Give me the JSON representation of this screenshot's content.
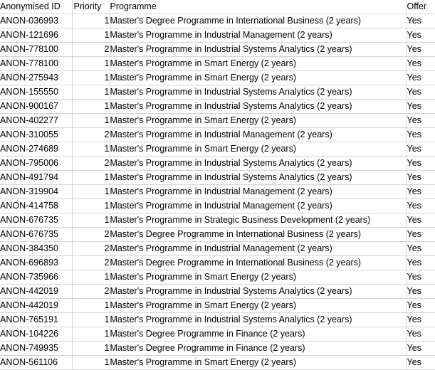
{
  "headers": {
    "id": "Anonymised ID",
    "priority": "Priority",
    "programme": "Programme",
    "offer": "Offer"
  },
  "rows": [
    {
      "id": "ANON-036993",
      "priority": "1",
      "programme": "Master's Degree Programme in International Business (2 years)",
      "offer": "Yes"
    },
    {
      "id": "ANON-121696",
      "priority": "1",
      "programme": "Master's Programme in Industrial Management (2 years)",
      "offer": "Yes"
    },
    {
      "id": "ANON-778100",
      "priority": "2",
      "programme": "Master's Programme in Industrial Systems Analytics (2 years)",
      "offer": "Yes"
    },
    {
      "id": "ANON-778100",
      "priority": "1",
      "programme": "Master's Programme in Smart Energy (2 years)",
      "offer": "Yes"
    },
    {
      "id": "ANON-275943",
      "priority": "1",
      "programme": "Master's Programme in Smart Energy (2 years)",
      "offer": "Yes"
    },
    {
      "id": "ANON-155550",
      "priority": "1",
      "programme": "Master's Programme in Industrial Systems Analytics (2 years)",
      "offer": "Yes"
    },
    {
      "id": "ANON-900167",
      "priority": "1",
      "programme": "Master's Programme in Industrial Systems Analytics (2 years)",
      "offer": "Yes"
    },
    {
      "id": "ANON-402277",
      "priority": "1",
      "programme": "Master's Programme in Smart Energy (2 years)",
      "offer": "Yes"
    },
    {
      "id": "ANON-310055",
      "priority": "2",
      "programme": "Master's Programme in Industrial Management (2 years)",
      "offer": "Yes"
    },
    {
      "id": "ANON-274689",
      "priority": "1",
      "programme": "Master's Programme in Smart Energy (2 years)",
      "offer": "Yes"
    },
    {
      "id": "ANON-795006",
      "priority": "2",
      "programme": "Master's Programme in Industrial Systems Analytics (2 years)",
      "offer": "Yes"
    },
    {
      "id": "ANON-491794",
      "priority": "1",
      "programme": "Master's Programme in Industrial Systems Analytics (2 years)",
      "offer": "Yes"
    },
    {
      "id": "ANON-319904",
      "priority": "1",
      "programme": "Master's Programme in Industrial Management (2 years)",
      "offer": "Yes"
    },
    {
      "id": "ANON-414758",
      "priority": "1",
      "programme": "Master's Programme in Industrial Management (2 years)",
      "offer": "Yes"
    },
    {
      "id": "ANON-676735",
      "priority": "1",
      "programme": "Master's Programme in Strategic Business Development (2 years)",
      "offer": "Yes"
    },
    {
      "id": "ANON-676735",
      "priority": "2",
      "programme": "Master's Degree Programme in International Business (2 years)",
      "offer": "Yes"
    },
    {
      "id": "ANON-384350",
      "priority": "2",
      "programme": "Master's Programme in Industrial Management (2 years)",
      "offer": "Yes"
    },
    {
      "id": "ANON-696893",
      "priority": "2",
      "programme": "Master's Degree Programme in International Business (2 years)",
      "offer": "Yes"
    },
    {
      "id": "ANON-735966",
      "priority": "1",
      "programme": "Master's Programme in Smart Energy (2 years)",
      "offer": "Yes"
    },
    {
      "id": "ANON-442019",
      "priority": "2",
      "programme": "Master's Programme in Industrial Systems Analytics (2 years)",
      "offer": "Yes"
    },
    {
      "id": "ANON-442019",
      "priority": "1",
      "programme": "Master's Programme in Smart Energy (2 years)",
      "offer": "Yes"
    },
    {
      "id": "ANON-765191",
      "priority": "1",
      "programme": "Master's Programme in Industrial Systems Analytics (2 years)",
      "offer": "Yes"
    },
    {
      "id": "ANON-104226",
      "priority": "1",
      "programme": "Master's Degree Programme in Finance (2 years)",
      "offer": "Yes"
    },
    {
      "id": "ANON-749935",
      "priority": "1",
      "programme": "Master's Degree Programme in Finance (2 years)",
      "offer": "Yes"
    },
    {
      "id": "ANON-561106",
      "priority": "1",
      "programme": "Master's Programme in Smart Energy (2 years)",
      "offer": "Yes"
    }
  ]
}
